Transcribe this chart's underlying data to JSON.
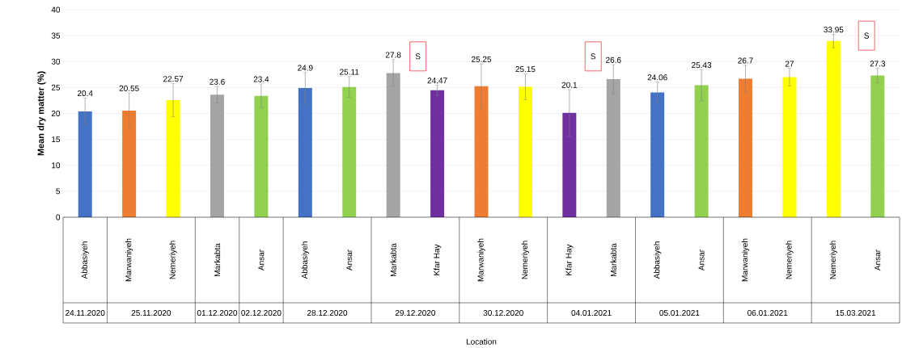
{
  "chart_data": {
    "type": "bar",
    "ylabel": "Mean dry  matter (%)",
    "categories": [
      "Abbasiyeh",
      "Marwaniyeh",
      "Nemeriyeh",
      "Markabta",
      "Ansar",
      "Abbasiyeh",
      "Ansar",
      "Markabta",
      "Kfar Hay",
      "Marwaniyeh",
      "Nemeriyeh",
      "Kfar Hay",
      "Markabta",
      "Abbasiyeh",
      "Ansar",
      "Marwaniyeh",
      "Nemeriyeh",
      "Nemeriyeh",
      "Ansar"
    ],
    "values": [
      20.4,
      20.55,
      22.57,
      23.6,
      23.4,
      24.9,
      25.11,
      27.8,
      24.47,
      25.25,
      25.15,
      20.1,
      26.6,
      24.06,
      25.43,
      26.7,
      27,
      33.95,
      27.3
    ],
    "colors": [
      "#4472c4",
      "#ed7d31",
      "#ffff00",
      "#a5a5a5",
      "#92d050",
      "#4472c4",
      "#92d050",
      "#a5a5a5",
      "#7030a0",
      "#ed7d31",
      "#ffff00",
      "#7030a0",
      "#a5a5a5",
      "#4472c4",
      "#92d050",
      "#ed7d31",
      "#ffff00",
      "#ffff00",
      "#92d050"
    ],
    "errors": [
      2.6,
      3.4,
      3.2,
      1.6,
      2.3,
      3.0,
      2.0,
      2.6,
      1.0,
      4.3,
      2.5,
      4.5,
      2.8,
      2.0,
      3.0,
      2.6,
      1.7,
      1.3,
      1.4
    ],
    "ylim": [
      0,
      40
    ],
    "yticks": [
      0,
      5,
      10,
      15,
      20,
      25,
      30,
      35,
      40
    ],
    "grid": "y",
    "data_labels": true,
    "annotations": [
      "24.11.2020",
      "25.11.2020",
      "01.12.2020",
      "02.12.2020",
      "28.12.2020",
      "29.12.2020",
      "30.12.2020",
      "04.01.2021",
      "05.01.2021",
      "06.01.2021",
      "15.03.2021",
      "S",
      "S",
      "S",
      "Location"
    ]
  }
}
